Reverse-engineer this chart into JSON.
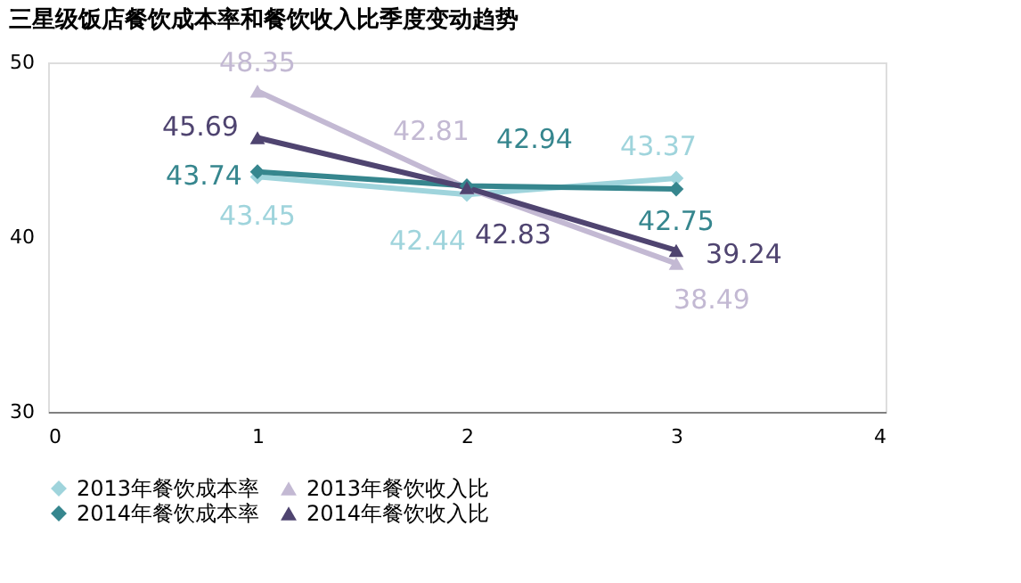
{
  "chart_data": {
    "type": "line",
    "title": "三星级饭店餐饮成本率和餐饮收入比季度变动趋势",
    "x": [
      1,
      2,
      3
    ],
    "series": [
      {
        "name": "2013年餐饮成本率",
        "color": "#9fd4dc",
        "marker": "diamond",
        "values": [
          43.45,
          42.44,
          43.37
        ]
      },
      {
        "name": "2013年餐饮收入比",
        "color": "#c3b9d3",
        "marker": "triangle",
        "values": [
          48.35,
          42.81,
          38.49
        ]
      },
      {
        "name": "2014年餐饮成本率",
        "color": "#36868e",
        "marker": "diamond",
        "values": [
          43.74,
          42.94,
          42.75
        ]
      },
      {
        "name": "2014年餐饮收入比",
        "color": "#4f4470",
        "marker": "triangle",
        "values": [
          45.69,
          42.83,
          39.24
        ]
      }
    ],
    "xlim": [
      0,
      4
    ],
    "xticks": [
      0,
      1,
      2,
      3,
      4
    ],
    "ylim": [
      30,
      50
    ],
    "yticks": [
      30,
      40,
      50
    ],
    "grid": false,
    "legend": "bottom",
    "data_labels": true,
    "line_style": "solid"
  }
}
